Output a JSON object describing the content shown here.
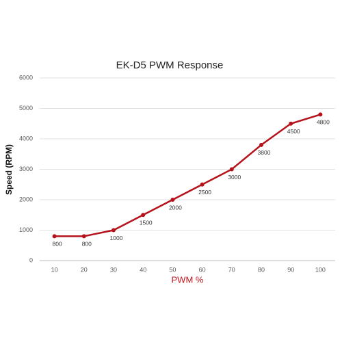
{
  "chart_data": {
    "type": "line",
    "title": "EK-D5 PWM Response",
    "x_label": "PWM %",
    "y_label": "Speed (RPM)",
    "categories": [
      "10",
      "20",
      "30",
      "40",
      "50",
      "60",
      "70",
      "80",
      "90",
      "100"
    ],
    "values": [
      800,
      800,
      1000,
      1500,
      2000,
      2500,
      3000,
      3800,
      4500,
      4800
    ],
    "color": "#b5121b",
    "ylim": [
      0,
      6000
    ],
    "yticks": [
      0,
      1000,
      2000,
      3000,
      4000,
      5000,
      6000
    ],
    "grid": true
  }
}
